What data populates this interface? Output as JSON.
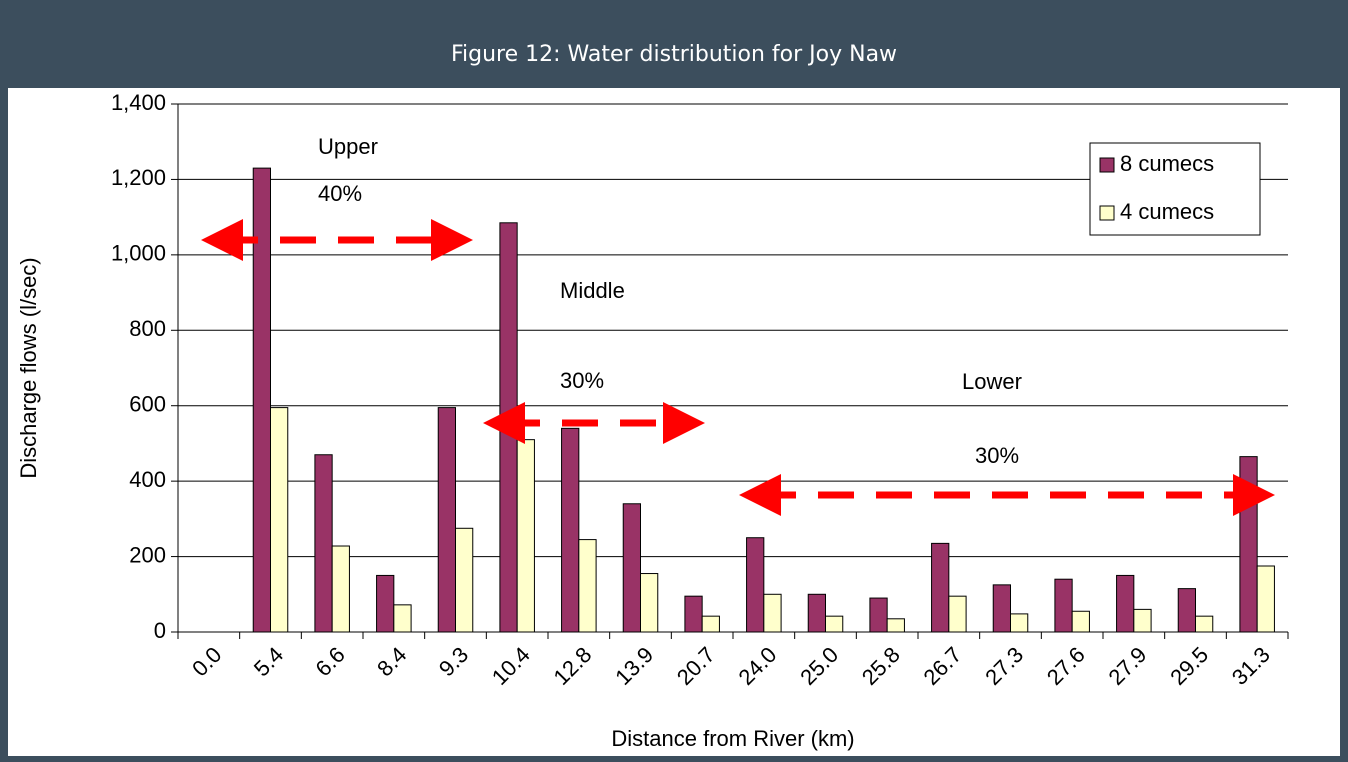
{
  "chart_data": {
    "type": "bar",
    "title": "Figure 12: Water distribution for Joy Naw",
    "x_label": "Distance from River (km)",
    "y_label": "Discharge flows (l/sec)",
    "categories": [
      "0.0",
      "5.4",
      "6.6",
      "8.4",
      "9.3",
      "10.4",
      "12.8",
      "13.9",
      "20.7",
      "24.0",
      "25.0",
      "25.8",
      "26.7",
      "27.3",
      "27.6",
      "27.9",
      "29.5",
      "31.3"
    ],
    "series": [
      {
        "name": "8 cumecs",
        "color": "#993366",
        "values": [
          0,
          1230,
          470,
          150,
          595,
          1085,
          540,
          340,
          95,
          250,
          100,
          90,
          235,
          125,
          140,
          150,
          115,
          465
        ]
      },
      {
        "name": "4 cumecs",
        "color": "#ffffcc",
        "values": [
          0,
          595,
          228,
          72,
          275,
          510,
          245,
          155,
          42,
          100,
          42,
          35,
          95,
          48,
          55,
          60,
          42,
          175
        ]
      }
    ],
    "ylim": [
      0,
      1400
    ],
    "yticks": [
      0,
      200,
      400,
      600,
      800,
      {
        "value": 1000,
        "label": "1,000"
      },
      {
        "value": 1200,
        "label": "1,200"
      },
      {
        "value": 1400,
        "label": "1,400"
      }
    ],
    "grid": true,
    "legend": "upper right",
    "annotations": [
      "Upper",
      "40%",
      "Middle",
      "30%",
      "Lower",
      "30%"
    ]
  }
}
